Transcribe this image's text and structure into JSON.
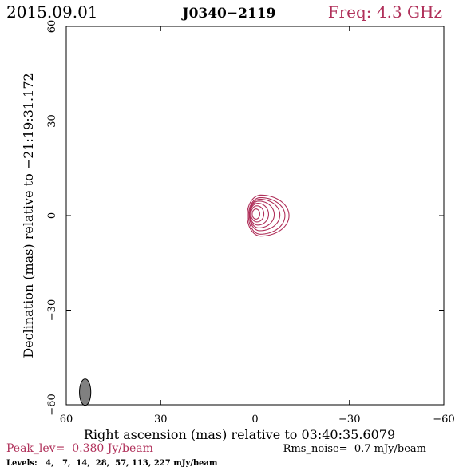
{
  "header": {
    "date": "2015.09.01",
    "source": "J0340−2119",
    "freq": "Freq: 4.3 GHz"
  },
  "footer": {
    "peak": "Peak_lev=  0.380 Jy/beam",
    "rms": "Rms_noise=  0.7 mJy/beam",
    "levels": "Levels:   4,   7,  14,  28,  57, 113, 227 mJy/beam"
  },
  "colors": {
    "accent": "#b0305a",
    "axes": "#000000",
    "beam": "#808080"
  },
  "chart_data": {
    "type": "contour",
    "title": "J0340−2119",
    "xlabel": "Right ascension (mas) relative to 03:40:35.6079",
    "ylabel": "Declination (mas) relative to −21:19:31.172",
    "xlim": [
      60,
      -60
    ],
    "ylim": [
      -60,
      60
    ],
    "xticks": [
      60,
      30,
      0,
      -30,
      -60
    ],
    "yticks": [
      60,
      30,
      0,
      -30,
      -60
    ],
    "xtick_labels": [
      "60",
      "30",
      "0",
      "−30",
      "−60"
    ],
    "ytick_labels": [
      "60",
      "30",
      "0",
      "−30",
      "−60"
    ],
    "peak_jy_per_beam": 0.38,
    "rms_mjy_per_beam": 0.7,
    "levels_mjy_per_beam": [
      4,
      7,
      14,
      28,
      57,
      113,
      227
    ],
    "contours": [
      {
        "level": 4,
        "cx": -1.8,
        "cy": 0.0,
        "rx_left": 4.3,
        "rx_right": 9.0,
        "ry_top": 6.5,
        "ry_bottom": 6.5
      },
      {
        "level": 7,
        "cx": -1.7,
        "cy": 0.0,
        "rx_left": 3.8,
        "rx_right": 7.8,
        "ry_top": 5.7,
        "ry_bottom": 5.9
      },
      {
        "level": 14,
        "cx": -1.5,
        "cy": 0.2,
        "rx_left": 3.3,
        "rx_right": 6.4,
        "ry_top": 5.0,
        "ry_bottom": 5.0
      },
      {
        "level": 28,
        "cx": -1.2,
        "cy": 0.3,
        "rx_left": 2.9,
        "rx_right": 4.9,
        "ry_top": 4.3,
        "ry_bottom": 4.2
      },
      {
        "level": 57,
        "cx": -0.9,
        "cy": 0.4,
        "rx_left": 2.5,
        "rx_right": 3.4,
        "ry_top": 3.5,
        "ry_bottom": 3.4
      },
      {
        "level": 113,
        "cx": -0.6,
        "cy": 0.5,
        "rx_left": 1.9,
        "rx_right": 2.2,
        "ry_top": 2.6,
        "ry_bottom": 2.5
      },
      {
        "level": 227,
        "cx": -0.3,
        "cy": 0.5,
        "rx_left": 1.2,
        "rx_right": 1.2,
        "ry_top": 1.6,
        "ry_bottom": 1.6
      }
    ],
    "beam": {
      "x": 54.0,
      "y": -56.0,
      "major_mas": 4.2,
      "minor_mas": 1.8,
      "pa_deg": 0
    },
    "grid": false
  }
}
